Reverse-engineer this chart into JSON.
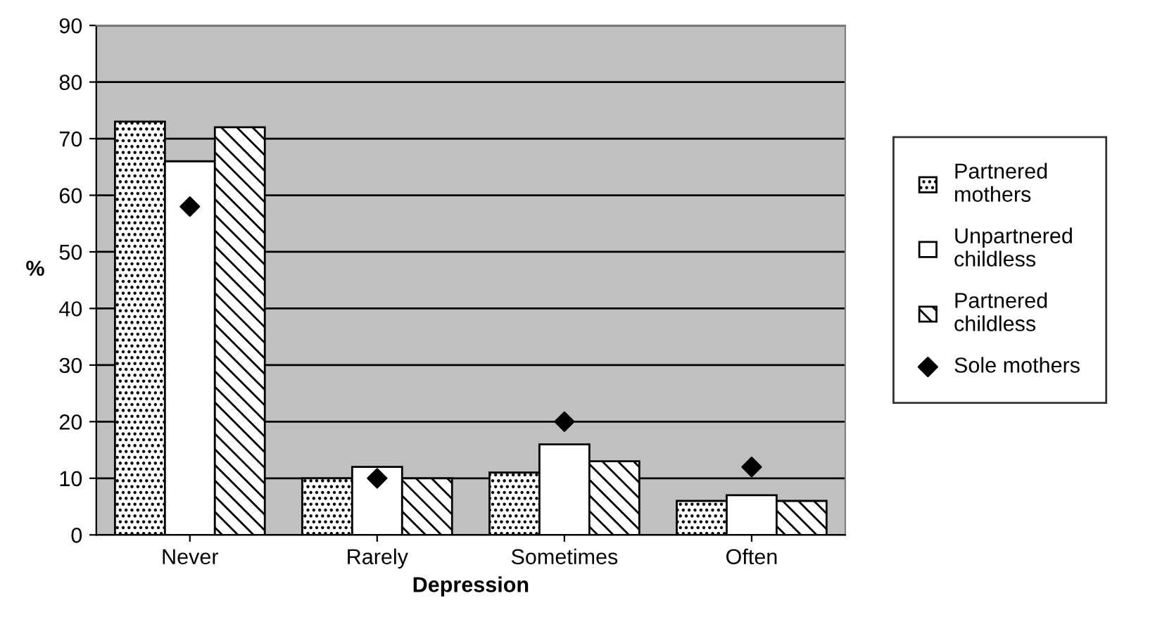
{
  "chart_data": {
    "type": "bar",
    "xlabel": "Depression",
    "ylabel": "%",
    "categories": [
      "Never",
      "Rarely",
      "Sometimes",
      "Often"
    ],
    "series": [
      {
        "name": "Partnered mothers",
        "color": "#000000",
        "values": [
          73,
          10,
          11,
          6
        ]
      },
      {
        "name": "Unpartnered childless",
        "color": "#ffffff",
        "values": [
          66,
          12,
          16,
          7
        ]
      },
      {
        "name": "Partnered childless",
        "color": "#000000",
        "values": [
          72,
          10,
          13,
          6
        ]
      },
      {
        "name": "Sole mothers",
        "type": "scatter",
        "color": "#000000",
        "values": [
          58,
          10,
          20,
          12
        ]
      }
    ],
    "ylim": [
      0,
      90
    ],
    "yticks": [
      0,
      10,
      20,
      30,
      40,
      50,
      60,
      70,
      80,
      90
    ],
    "grid": "y",
    "legend": "right",
    "marker": "diamond"
  }
}
